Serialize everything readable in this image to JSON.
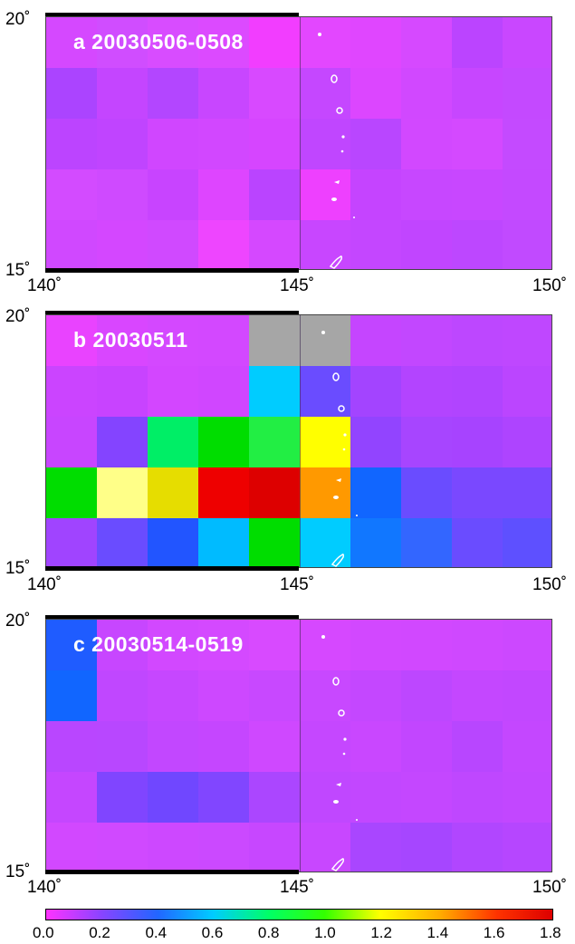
{
  "panels": [
    {
      "label": "a  20030506-0508",
      "grid": [
        [
          "#d548ff",
          "#d04dff",
          "#d84cff",
          "#dc4aff",
          "#f23dff",
          "#e347ff",
          "#e046ff",
          "#d649ff",
          "#bb44ff",
          "#c947ff"
        ],
        [
          "#ab44ff",
          "#c445ff",
          "#b346ff",
          "#c846ff",
          "#d849ff",
          "#c547ff",
          "#dc46ff",
          "#d148ff",
          "#c746ff",
          "#c449ff"
        ],
        [
          "#bc44ff",
          "#c044ff",
          "#d046ff",
          "#d247ff",
          "#d645ff",
          "#c046ff",
          "#b946ff",
          "#d248ff",
          "#d449ff",
          "#c44aff"
        ],
        [
          "#d34bff",
          "#cf4aff",
          "#c844ff",
          "#de45ff",
          "#ba44ff",
          "#ee40ff",
          "#c544ff",
          "#c747ff",
          "#c847ff",
          "#c449ff"
        ],
        [
          "#d048ff",
          "#d447ff",
          "#d049ff",
          "#ee45ff",
          "#d548ff",
          "#c846ff",
          "#c446ff",
          "#c145ff",
          "#bd47ff",
          "#c14aff"
        ]
      ],
      "lat_ticks": [
        "20˚",
        "15˚"
      ],
      "lon_ticks": [
        "140˚",
        "145˚",
        "150˚"
      ]
    },
    {
      "label": "b  20030511",
      "grid": [
        [
          "#e943ff",
          "#d946ff",
          "#d448ff",
          "#d348ff",
          "#a6a6a6",
          "#a6a6a6",
          "#c545ff",
          "#c247ff",
          "#bd47ff",
          "#bf47ff"
        ],
        [
          "#cb44ff",
          "#c843ff",
          "#d346ff",
          "#d046ff",
          "#00ccff",
          "#6a4cff",
          "#a344ff",
          "#b344ff",
          "#b144ff",
          "#bb45ff"
        ],
        [
          "#c845ff",
          "#8444ff",
          "#00ee66",
          "#00dd00",
          "#22ee44",
          "#ffff00",
          "#9244ff",
          "#a745ff",
          "#a743ff",
          "#ae44ff"
        ],
        [
          "#00dd00",
          "#ffff88",
          "#e6dd00",
          "#ee0000",
          "#dd0000",
          "#ff9900",
          "#1166ff",
          "#6a4cff",
          "#7a48ff",
          "#7a48ff"
        ],
        [
          "#a044ff",
          "#6a4cff",
          "#2255ff",
          "#00bbff",
          "#00dd00",
          "#00ccff",
          "#1177ff",
          "#3366ff",
          "#6a4cff",
          "#5e50ff"
        ]
      ],
      "lat_ticks": [
        "20˚",
        "15˚"
      ],
      "lon_ticks": [
        "140˚",
        "145˚",
        "150˚"
      ]
    },
    {
      "label": "c  20030514-0519",
      "grid": [
        [
          "#1f5cff",
          "#c746ff",
          "#d248ff",
          "#d449ff",
          "#d84aff",
          "#d648ff",
          "#d248ff",
          "#d148ff",
          "#cf48ff",
          "#cc48ff"
        ],
        [
          "#1166ff",
          "#c047ff",
          "#c647ff",
          "#cd48ff",
          "#c848ff",
          "#c848ff",
          "#c447ff",
          "#bd47ff",
          "#c447ff",
          "#c247ff"
        ],
        [
          "#b946ff",
          "#b847ff",
          "#c247ff",
          "#c546ff",
          "#cf48ff",
          "#c547ff",
          "#c947ff",
          "#c246ff",
          "#b846ff",
          "#c447ff"
        ],
        [
          "#c546ff",
          "#8045ff",
          "#7047ff",
          "#8146ff",
          "#ab46ff",
          "#c047ff",
          "#c247ff",
          "#c447ff",
          "#bf47ff",
          "#c247ff"
        ],
        [
          "#d248ff",
          "#d049ff",
          "#cd48ff",
          "#cb49ff",
          "#c747ff",
          "#c847ff",
          "#a946ff",
          "#a646ff",
          "#b146ff",
          "#b646ff"
        ]
      ],
      "lat_ticks": [
        "20˚",
        "15˚"
      ],
      "lon_ticks": [
        "140˚",
        "145˚",
        "150˚"
      ]
    }
  ],
  "colorbar": {
    "ticks": [
      "0.0",
      "0.2",
      "0.4",
      "0.6",
      "0.8",
      "1.0",
      "1.2",
      "1.4",
      "1.6",
      "1.8"
    ]
  }
}
